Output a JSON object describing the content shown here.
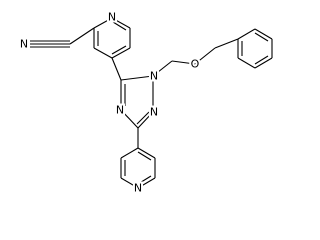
{
  "atoms": [
    {
      "label": "N"
    },
    {
      "label": "N"
    },
    {
      "label": "N"
    },
    {
      "label": "O"
    },
    {
      "label": "N"
    },
    {
      "label": "N"
    },
    {
      "label": "N"
    }
  ]
}
